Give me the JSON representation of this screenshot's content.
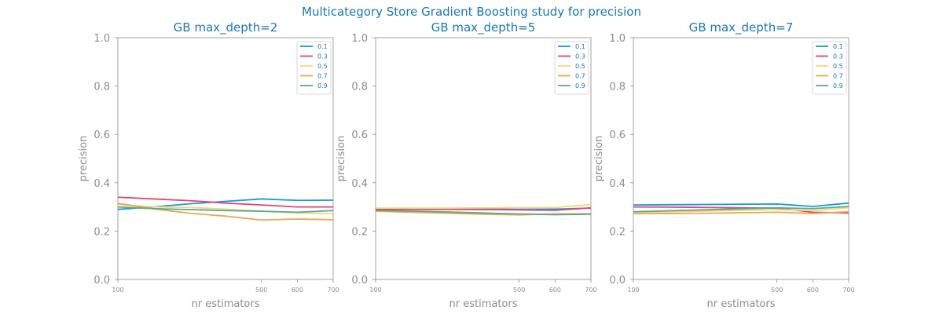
{
  "figure": {
    "suptitle": "Multicategory Store Gradient Boosting study for precision"
  },
  "colors": {
    "text_accent": "#1a78b4",
    "axis": "#8c8c8c",
    "series": [
      "#1a9ad6",
      "#e2437a",
      "#f0d87a",
      "#e8a850",
      "#5aaa8a"
    ]
  },
  "chart_data": [
    {
      "type": "line",
      "title": "GB max_depth=2",
      "xlabel": "nr estimators",
      "ylabel": "precision",
      "xlim": [
        100,
        700
      ],
      "ylim": [
        0.0,
        1.0
      ],
      "xticks": [
        100,
        500,
        600,
        700
      ],
      "yticks": [
        0.0,
        0.2,
        0.4,
        0.6,
        0.8,
        1.0
      ],
      "legend_position": "top-right",
      "x": [
        100,
        200,
        300,
        400,
        500,
        600,
        700
      ],
      "series": [
        {
          "name": "0.1",
          "values": [
            0.29,
            0.3,
            0.313,
            0.323,
            0.333,
            0.327,
            0.328
          ]
        },
        {
          "name": "0.3",
          "values": [
            0.34,
            0.333,
            0.326,
            0.316,
            0.308,
            0.3,
            0.3
          ]
        },
        {
          "name": "0.5",
          "values": [
            0.31,
            0.3,
            0.298,
            0.291,
            0.283,
            0.275,
            0.272
          ]
        },
        {
          "name": "0.7",
          "values": [
            0.315,
            0.292,
            0.274,
            0.262,
            0.246,
            0.25,
            0.247
          ]
        },
        {
          "name": "0.9",
          "values": [
            0.3,
            0.293,
            0.289,
            0.285,
            0.282,
            0.278,
            0.285
          ]
        }
      ]
    },
    {
      "type": "line",
      "title": "GB max_depth=5",
      "xlabel": "nr estimators",
      "ylabel": "precision",
      "xlim": [
        100,
        700
      ],
      "ylim": [
        0.0,
        1.0
      ],
      "xticks": [
        100,
        500,
        600,
        700
      ],
      "yticks": [
        0.0,
        0.2,
        0.4,
        0.6,
        0.8,
        1.0
      ],
      "legend_position": "top-right",
      "x": [
        100,
        200,
        300,
        400,
        500,
        600,
        700
      ],
      "series": [
        {
          "name": "0.1",
          "values": [
            0.293,
            0.292,
            0.292,
            0.291,
            0.29,
            0.291,
            0.295
          ]
        },
        {
          "name": "0.3",
          "values": [
            0.29,
            0.29,
            0.29,
            0.289,
            0.288,
            0.286,
            0.296
          ]
        },
        {
          "name": "0.5",
          "values": [
            0.295,
            0.295,
            0.295,
            0.296,
            0.297,
            0.298,
            0.309
          ]
        },
        {
          "name": "0.7",
          "values": [
            0.282,
            0.278,
            0.274,
            0.27,
            0.267,
            0.271,
            0.272
          ]
        },
        {
          "name": "0.9",
          "values": [
            0.286,
            0.283,
            0.279,
            0.275,
            0.271,
            0.268,
            0.27
          ]
        }
      ]
    },
    {
      "type": "line",
      "title": "GB max_depth=7",
      "xlabel": "nr estimators",
      "ylabel": "precision",
      "xlim": [
        100,
        700
      ],
      "ylim": [
        0.0,
        1.0
      ],
      "xticks": [
        100,
        500,
        600,
        700
      ],
      "yticks": [
        0.0,
        0.2,
        0.4,
        0.6,
        0.8,
        1.0
      ],
      "legend_position": "top-right",
      "x": [
        100,
        200,
        300,
        400,
        500,
        600,
        700
      ],
      "series": [
        {
          "name": "0.1",
          "values": [
            0.308,
            0.309,
            0.31,
            0.311,
            0.312,
            0.302,
            0.316
          ]
        },
        {
          "name": "0.3",
          "values": [
            0.3,
            0.299,
            0.298,
            0.296,
            0.295,
            0.278,
            0.275
          ]
        },
        {
          "name": "0.5",
          "values": [
            0.278,
            0.28,
            0.283,
            0.286,
            0.289,
            0.285,
            0.297
          ]
        },
        {
          "name": "0.7",
          "values": [
            0.272,
            0.273,
            0.274,
            0.276,
            0.278,
            0.273,
            0.28
          ]
        },
        {
          "name": "0.9",
          "values": [
            0.28,
            0.284,
            0.288,
            0.292,
            0.296,
            0.293,
            0.302
          ]
        }
      ]
    }
  ]
}
